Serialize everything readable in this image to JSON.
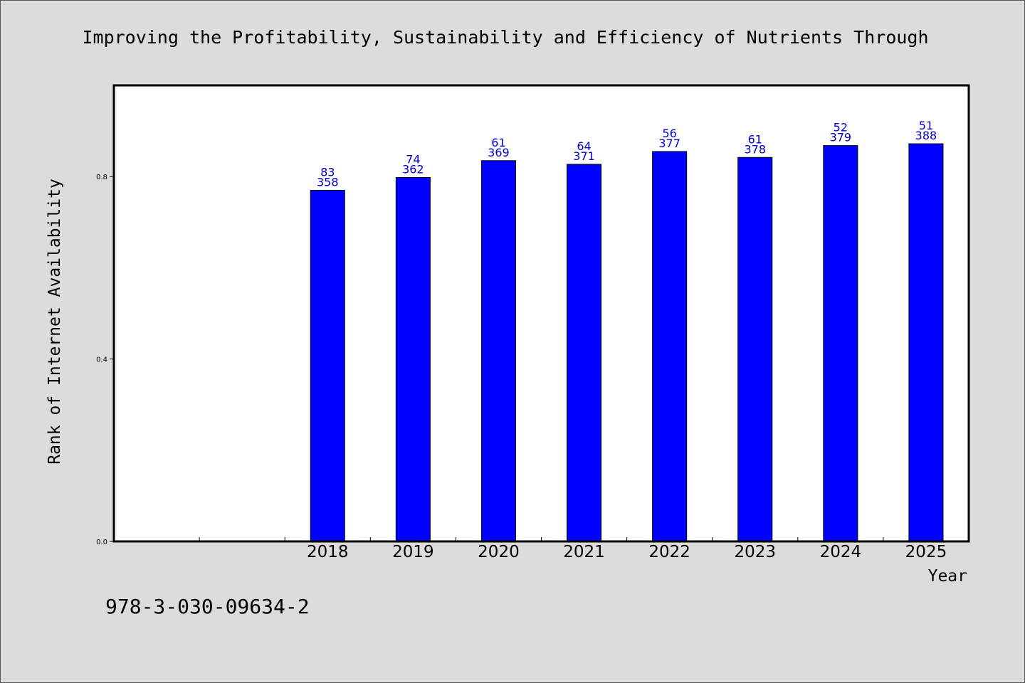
{
  "chart_data": {
    "type": "bar",
    "title": "Improving the Profitability, Sustainability and Efficiency of Nutrients Through",
    "xlabel": "Year",
    "ylabel": "Rank of Internet Availability",
    "categories": [
      "",
      "",
      "2018",
      "2019",
      "2020",
      "2021",
      "2022",
      "2023",
      "2024",
      "2025"
    ],
    "series": [
      {
        "values": [
          null,
          null,
          0.77,
          0.798,
          0.835,
          0.827,
          0.855,
          0.842,
          0.868,
          0.872
        ],
        "color": "#0000ff",
        "labels_top": [
          "",
          "",
          "83",
          "74",
          "61",
          "64",
          "56",
          "61",
          "52",
          "51"
        ],
        "labels_bottom": [
          "",
          "",
          "358",
          "362",
          "369",
          "371",
          "377",
          "378",
          "379",
          "388"
        ]
      }
    ],
    "ylim": [
      0,
      1.0
    ],
    "yticks": [
      0.0,
      0.4,
      0.8
    ],
    "ytick_labels": [
      "0.0",
      "0.4",
      "0.8"
    ],
    "grid": false,
    "legend": "none"
  },
  "footnote": "978-3-030-09634-2",
  "colors": {
    "background": "#dcdcdc",
    "plot_background": "#ffffff",
    "bar": "#0000ff",
    "bar_label": "#0000cc"
  }
}
